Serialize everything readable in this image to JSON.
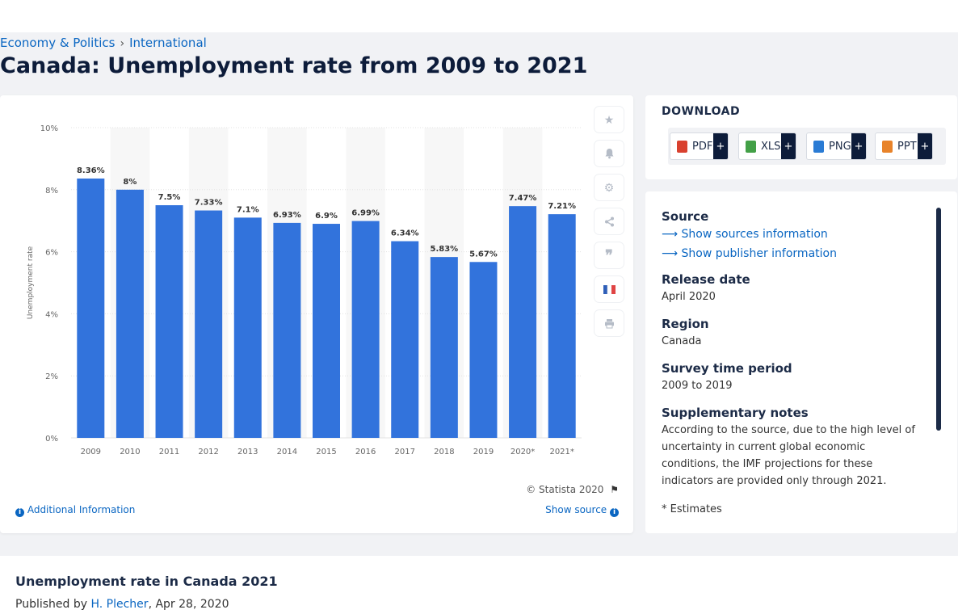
{
  "breadcrumb": {
    "item1": "Economy & Politics",
    "separator": "›",
    "item2": "International"
  },
  "page_title": "Canada: Unemployment rate from 2009 to 2021",
  "chart_data": {
    "type": "bar",
    "categories": [
      "2009",
      "2010",
      "2011",
      "2012",
      "2013",
      "2014",
      "2015",
      "2016",
      "2017",
      "2018",
      "2019",
      "2020*",
      "2021*"
    ],
    "values": [
      8.36,
      8,
      7.5,
      7.33,
      7.1,
      6.93,
      6.9,
      6.99,
      6.34,
      5.83,
      5.67,
      7.47,
      7.21
    ],
    "value_labels": [
      "8.36%",
      "8%",
      "7.5%",
      "7.33%",
      "7.1%",
      "6.93%",
      "6.9%",
      "6.99%",
      "6.34%",
      "5.83%",
      "5.67%",
      "7.47%",
      "7.21%"
    ],
    "ylabel": "Unemployment rate",
    "yticks": [
      0,
      2,
      4,
      6,
      8,
      10
    ],
    "ytick_labels": [
      "0%",
      "2%",
      "4%",
      "6%",
      "8%",
      "10%"
    ],
    "ylim": [
      0,
      10
    ],
    "bar_color": "#3273dc",
    "band_color": "#f7f7f7",
    "grid": true
  },
  "chart_footer": {
    "copyright": "© Statista 2020",
    "flag_icon": "flag-icon",
    "additional_info": "Additional Information",
    "show_source": "Show source"
  },
  "side_icons": [
    "star-icon",
    "bell-icon",
    "gear-icon",
    "share-icon",
    "quote-icon",
    "french-flag-icon",
    "print-icon"
  ],
  "download": {
    "title": "DOWNLOAD",
    "buttons": [
      {
        "label": "PDF",
        "plus": "+",
        "color": "#d9412f"
      },
      {
        "label": "XLS",
        "plus": "+",
        "color": "#43a047"
      },
      {
        "label": "PNG",
        "plus": "+",
        "color": "#2a7bd4"
      },
      {
        "label": "PPT",
        "plus": "+",
        "color": "#e8832a"
      }
    ]
  },
  "info": {
    "source_label": "Source",
    "show_sources": "Show sources information",
    "show_publisher": "Show publisher information",
    "release_label": "Release date",
    "release_value": "April 2020",
    "region_label": "Region",
    "region_value": "Canada",
    "survey_label": "Survey time period",
    "survey_value": "2009 to 2019",
    "notes_label": "Supplementary notes",
    "notes_value": "According to the source, due to the high level of uncertainty in current global economic conditions, the IMF projections for these indicators are provided only through 2021.",
    "footnote": "* Estimates"
  },
  "bottom": {
    "title": "Unemployment rate in Canada 2021",
    "published_prefix": "Published by",
    "author": "H. Plecher",
    "date": ", Apr 28, 2020"
  }
}
